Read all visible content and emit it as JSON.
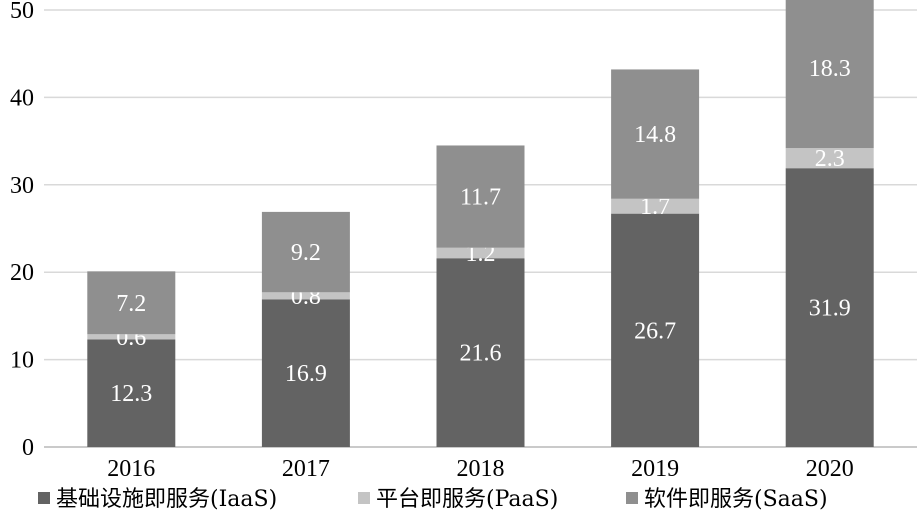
{
  "chart_data": {
    "type": "bar",
    "stacked": true,
    "categories": [
      "2016",
      "2017",
      "2018",
      "2019",
      "2020"
    ],
    "series": [
      {
        "name": "基础设施即服务(IaaS)",
        "values": [
          12.3,
          16.9,
          21.6,
          26.7,
          31.9
        ],
        "color": "#636363"
      },
      {
        "name": "平台即服务(PaaS)",
        "values": [
          0.6,
          0.8,
          1.2,
          1.7,
          2.3
        ],
        "color": "#c4c4c4"
      },
      {
        "name": "软件即服务(SaaS)",
        "values": [
          7.2,
          9.2,
          11.7,
          14.8,
          18.3
        ],
        "color": "#8f8f8f"
      }
    ],
    "ylim": [
      0,
      50
    ],
    "yticks": [
      0,
      10,
      20,
      30,
      40,
      50
    ],
    "grid": true,
    "legend": "bottom",
    "title": "",
    "xlabel": "",
    "ylabel": ""
  }
}
